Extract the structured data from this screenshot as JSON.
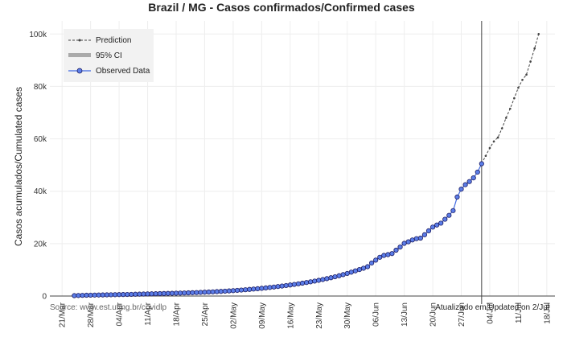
{
  "chart_data": {
    "type": "line",
    "title": "Brazil / MG - Casos confirmados/Confirmed cases",
    "ylabel": "Casos acumulados/Cumulated cases",
    "xlabel": "",
    "x_range": [
      "2020-03-18",
      "2020-07-20"
    ],
    "ylim": [
      0,
      105000
    ],
    "y_ticks": [
      0,
      20000,
      40000,
      60000,
      80000,
      100000
    ],
    "y_tick_labels": [
      "0",
      "20k",
      "40k",
      "60k",
      "80k",
      "100k"
    ],
    "x_ticks": [
      "2020-03-21",
      "2020-03-28",
      "2020-04-04",
      "2020-04-11",
      "2020-04-18",
      "2020-04-25",
      "2020-05-02",
      "2020-05-09",
      "2020-05-16",
      "2020-05-23",
      "2020-05-30",
      "2020-06-06",
      "2020-06-13",
      "2020-06-20",
      "2020-06-27",
      "2020-07-04",
      "2020-07-11",
      "2020-07-18"
    ],
    "x_tick_labels": [
      "21/Mar",
      "28/Mar",
      "04/Apr",
      "11/Apr",
      "18/Apr",
      "25/Apr",
      "02/May",
      "09/May",
      "16/May",
      "23/May",
      "30/May",
      "06/Jun",
      "13/Jun",
      "20/Jun",
      "27/Jun",
      "04/Jul",
      "11/Jul",
      "18/Jul"
    ],
    "grid": true,
    "legend_position": "top-left",
    "vertical_line_date": "2020-07-02",
    "series": [
      {
        "name": "Observed Data",
        "color": "#4169e1",
        "marker_fill": "#5b7de8",
        "marker_edge": "#1a1a60",
        "x": [
          "2020-03-24",
          "2020-03-25",
          "2020-03-26",
          "2020-03-27",
          "2020-03-28",
          "2020-03-29",
          "2020-03-30",
          "2020-03-31",
          "2020-04-01",
          "2020-04-02",
          "2020-04-03",
          "2020-04-04",
          "2020-04-05",
          "2020-04-06",
          "2020-04-07",
          "2020-04-08",
          "2020-04-09",
          "2020-04-10",
          "2020-04-11",
          "2020-04-12",
          "2020-04-13",
          "2020-04-14",
          "2020-04-15",
          "2020-04-16",
          "2020-04-17",
          "2020-04-18",
          "2020-04-19",
          "2020-04-20",
          "2020-04-21",
          "2020-04-22",
          "2020-04-23",
          "2020-04-24",
          "2020-04-25",
          "2020-04-26",
          "2020-04-27",
          "2020-04-28",
          "2020-04-29",
          "2020-04-30",
          "2020-05-01",
          "2020-05-02",
          "2020-05-03",
          "2020-05-04",
          "2020-05-05",
          "2020-05-06",
          "2020-05-07",
          "2020-05-08",
          "2020-05-09",
          "2020-05-10",
          "2020-05-11",
          "2020-05-12",
          "2020-05-13",
          "2020-05-14",
          "2020-05-15",
          "2020-05-16",
          "2020-05-17",
          "2020-05-18",
          "2020-05-19",
          "2020-05-20",
          "2020-05-21",
          "2020-05-22",
          "2020-05-23",
          "2020-05-24",
          "2020-05-25",
          "2020-05-26",
          "2020-05-27",
          "2020-05-28",
          "2020-05-29",
          "2020-05-30",
          "2020-05-31",
          "2020-06-01",
          "2020-06-02",
          "2020-06-03",
          "2020-06-04",
          "2020-06-05",
          "2020-06-06",
          "2020-06-07",
          "2020-06-08",
          "2020-06-09",
          "2020-06-10",
          "2020-06-11",
          "2020-06-12",
          "2020-06-13",
          "2020-06-14",
          "2020-06-15",
          "2020-06-16",
          "2020-06-17",
          "2020-06-18",
          "2020-06-19",
          "2020-06-20",
          "2020-06-21",
          "2020-06-22",
          "2020-06-23",
          "2020-06-24",
          "2020-06-25",
          "2020-06-26",
          "2020-06-27",
          "2020-06-28",
          "2020-06-29",
          "2020-06-30",
          "2020-07-01",
          "2020-07-02"
        ],
        "y": [
          150,
          200,
          250,
          300,
          330,
          360,
          390,
          420,
          450,
          480,
          510,
          540,
          570,
          600,
          640,
          680,
          720,
          760,
          800,
          840,
          880,
          920,
          960,
          1000,
          1040,
          1080,
          1120,
          1170,
          1220,
          1270,
          1330,
          1390,
          1460,
          1530,
          1600,
          1680,
          1760,
          1850,
          1950,
          2050,
          2160,
          2280,
          2400,
          2530,
          2660,
          2800,
          2950,
          3100,
          3270,
          3440,
          3620,
          3810,
          4010,
          4220,
          4440,
          4670,
          4910,
          5160,
          5420,
          5700,
          5990,
          6300,
          6630,
          6980,
          7350,
          7750,
          8170,
          8620,
          9100,
          9600,
          10100,
          10600,
          11200,
          12600,
          13700,
          14800,
          15500,
          15800,
          16200,
          17500,
          18700,
          20100,
          20700,
          21400,
          21900,
          22100,
          23400,
          24900,
          26300,
          27100,
          27800,
          29300,
          30800,
          32600,
          37800,
          40800,
          42500,
          43700,
          45100,
          47300,
          50500
        ]
      },
      {
        "name": "Prediction",
        "color": "#444444",
        "x": [
          "2020-07-02",
          "2020-07-03",
          "2020-07-04",
          "2020-07-05",
          "2020-07-06",
          "2020-07-07",
          "2020-07-08",
          "2020-07-09",
          "2020-07-10",
          "2020-07-11",
          "2020-07-12",
          "2020-07-13",
          "2020-07-14",
          "2020-07-15",
          "2020-07-16"
        ],
        "y": [
          50500,
          53500,
          56500,
          59000,
          60500,
          64000,
          68000,
          71500,
          75500,
          79500,
          82500,
          84500,
          89500,
          94500,
          100000
        ]
      },
      {
        "name": "95% CI",
        "color": "#aaaaaa"
      }
    ],
    "annotations": [
      "Source: www.est.ufmg.br/covidlp",
      "Atualizado em/Updated on 2/Jul"
    ]
  }
}
